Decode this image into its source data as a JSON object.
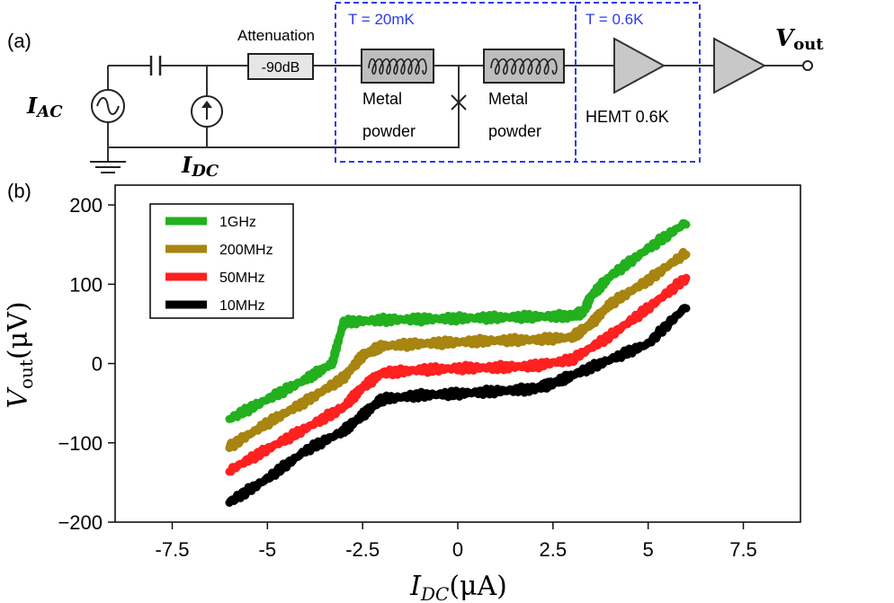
{
  "circuit": {
    "panel_label": "(a)",
    "source_ac": {
      "main": "I",
      "sub": "AC"
    },
    "source_dc": {
      "main": "I",
      "sub": "DC"
    },
    "attenuation_label": "Attenuation",
    "attenuator_value": "-90dB",
    "zone_20mk": "T = 20mK",
    "zone_06k": "T = 0.6K",
    "filter1_label": [
      "Metal",
      "powder"
    ],
    "filter2_label": [
      "Metal",
      "powder"
    ],
    "hemt_label": "HEMT 0.6K",
    "output_label": {
      "main": "V",
      "sub": "out"
    },
    "zone_color": "#2b3bf0"
  },
  "chart_data": {
    "panel_label": "(b)",
    "type": "line",
    "xlabel": {
      "main": "I",
      "sub": "DC",
      "unit": "(μA)"
    },
    "ylabel": {
      "main": "V",
      "sub": "out",
      "unit": "(μV)"
    },
    "xlim": [
      -9,
      9
    ],
    "ylim": [
      -200,
      225
    ],
    "xticks": [
      -7.5,
      -5,
      -2.5,
      0,
      2.5,
      5,
      7.5
    ],
    "xtick_labels": [
      "-7.5",
      "-5",
      "-2.5",
      "0",
      "2.5",
      "5",
      "7.5"
    ],
    "yticks": [
      -200,
      -100,
      0,
      100,
      200
    ],
    "ytick_labels": [
      "−200",
      "−100",
      "0",
      "100",
      "200"
    ],
    "legend_position": "top-left",
    "series": [
      {
        "name": "1GHz",
        "color": "#22b01e",
        "x": [
          -6,
          -5,
          -4,
          -3.3,
          -3,
          -2,
          -1,
          0,
          1,
          2,
          3,
          3.3,
          3.5,
          4,
          5,
          6
        ],
        "y": [
          -70,
          -45,
          -20,
          0,
          52,
          55,
          56,
          57,
          58,
          59,
          60,
          65,
          85,
          110,
          145,
          178
        ]
      },
      {
        "name": "200MHz",
        "color": "#a88410",
        "x": [
          -6,
          -5,
          -4,
          -3,
          -2.5,
          -2,
          -1,
          0,
          1,
          2,
          3,
          3.5,
          4,
          5,
          6
        ],
        "y": [
          -105,
          -75,
          -48,
          -18,
          10,
          22,
          25,
          27,
          29,
          30,
          33,
          50,
          75,
          105,
          140
        ]
      },
      {
        "name": "50MHz",
        "color": "#ff2020",
        "x": [
          -6,
          -5,
          -4,
          -3,
          -2.5,
          -2,
          -1,
          0,
          1,
          2,
          3,
          4,
          5,
          6
        ],
        "y": [
          -135,
          -108,
          -82,
          -55,
          -30,
          -12,
          -8,
          -6,
          -5,
          -3,
          5,
          35,
          70,
          108
        ]
      },
      {
        "name": "10MHz",
        "color": "#000000",
        "x": [
          -6,
          -5,
          -4,
          -3,
          -2.5,
          -2,
          -1,
          0,
          1,
          2,
          2.5,
          3,
          4,
          5,
          6
        ],
        "y": [
          -175,
          -145,
          -110,
          -85,
          -65,
          -45,
          -40,
          -38,
          -35,
          -32,
          -25,
          -15,
          5,
          25,
          72
        ]
      }
    ]
  }
}
